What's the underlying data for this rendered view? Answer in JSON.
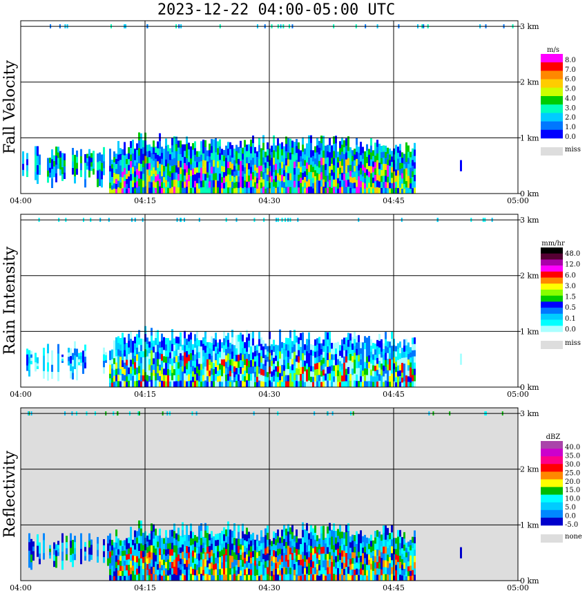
{
  "title": "2023-12-22   04:00-05:00 UTC",
  "x_ticks": [
    "04:00",
    "04:15",
    "04:30",
    "04:45",
    "05:00"
  ],
  "y_ticks": [
    "0 km",
    "1 km",
    "2 km",
    "3 km"
  ],
  "chart_data": [
    {
      "type": "heatmap",
      "ylabel": "Fall Velocity",
      "xlim": [
        "04:00",
        "05:00"
      ],
      "ylim_km": [
        0,
        3.1
      ],
      "grid": true,
      "background": "#ffffff",
      "echo_top_km": [
        0.9,
        0.85,
        0.85,
        0.8,
        0.95,
        1.05,
        1.0,
        1.0,
        1.0,
        1.05,
        1.0,
        1.0,
        1.0,
        1.0,
        1.0,
        1.0,
        0.95
      ],
      "colorbar": {
        "unit": "m/s",
        "labels": [
          "8.0",
          "7.0",
          "6.0",
          "5.0",
          "4.0",
          "3.0",
          "2.0",
          "1.0",
          "0.0"
        ],
        "colors": [
          "#ff00ff",
          "#ff0000",
          "#ff8800",
          "#ffcc00",
          "#ccff00",
          "#00cc00",
          "#00ffbb",
          "#00ccff",
          "#0077ff",
          "#0000ff"
        ],
        "missing_label": "miss",
        "missing_color": "#dddddd"
      }
    },
    {
      "type": "heatmap",
      "ylabel": "Rain Intensity",
      "xlim": [
        "04:00",
        "05:00"
      ],
      "ylim_km": [
        0,
        3.1
      ],
      "grid": true,
      "background": "#ffffff",
      "echo_top_km": [
        0.7,
        0.75,
        0.8,
        0.8,
        0.95,
        1.05,
        1.0,
        1.0,
        1.05,
        1.0,
        0.95,
        1.0,
        1.0,
        1.0,
        0.95,
        0.95,
        0.9
      ],
      "colorbar": {
        "unit": "mm/hr",
        "labels": [
          "48.0",
          "12.0",
          "6.0",
          "3.0",
          "1.5",
          "0.5",
          "0.1",
          "0.0"
        ],
        "colors": [
          "#000000",
          "#550033",
          "#aa00aa",
          "#ff00ff",
          "#ff0000",
          "#ff8800",
          "#ffff00",
          "#88ff00",
          "#00cc00",
          "#0000ff",
          "#0077ff",
          "#00ccff",
          "#00ffff",
          "#aaffff"
        ],
        "missing_label": "miss",
        "missing_color": "#dddddd"
      }
    },
    {
      "type": "heatmap",
      "ylabel": "Reflectivity",
      "xlim": [
        "04:00",
        "05:00"
      ],
      "ylim_km": [
        0,
        3.1
      ],
      "grid": true,
      "background": "#dddddd",
      "echo_top_km": [
        0.85,
        0.85,
        0.9,
        0.85,
        0.95,
        1.05,
        1.0,
        1.0,
        1.05,
        1.0,
        0.95,
        1.0,
        1.0,
        1.0,
        1.0,
        0.95,
        0.9
      ],
      "colorbar": {
        "unit": "dBZ",
        "labels": [
          "40.0",
          "35.0",
          "30.0",
          "25.0",
          "20.0",
          "15.0",
          "10.0",
          "5.0",
          "0.0",
          "-5.0"
        ],
        "colors": [
          "#aa44aa",
          "#cc00cc",
          "#ff0088",
          "#ff0000",
          "#ff8800",
          "#ffff00",
          "#00bb00",
          "#00ffff",
          "#00ccff",
          "#0088ff",
          "#0000cc"
        ],
        "missing_label": "none",
        "missing_color": "#dddddd"
      }
    }
  ]
}
